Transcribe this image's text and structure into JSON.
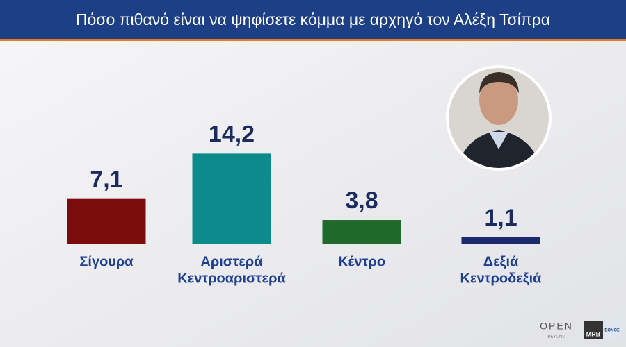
{
  "chart_data": {
    "type": "bar",
    "title": "Πόσο πιθανό είναι να ψηφίσετε κόμμα με αρχηγό τον Αλέξη Τσίπρα",
    "categories": [
      [
        "Σίγουρα"
      ],
      [
        "Αριστερά",
        "Κεντροαριστερά"
      ],
      [
        "Κέντρο"
      ],
      [
        "Δεξιά",
        "Κεντροδεξιά"
      ]
    ],
    "values": [
      7.1,
      14.2,
      3.8,
      1.1
    ],
    "value_labels": [
      "7,1",
      "14,2",
      "3,8",
      "1,1"
    ],
    "colors": [
      "#7b0c0c",
      "#0d8a8c",
      "#1f6a2a",
      "#1a2a6c"
    ]
  },
  "logos": {
    "channel": "OPEN",
    "channel_sub": "BEYOND",
    "pollster": "MRB",
    "paper": "ΕΘΝΟΣ"
  }
}
